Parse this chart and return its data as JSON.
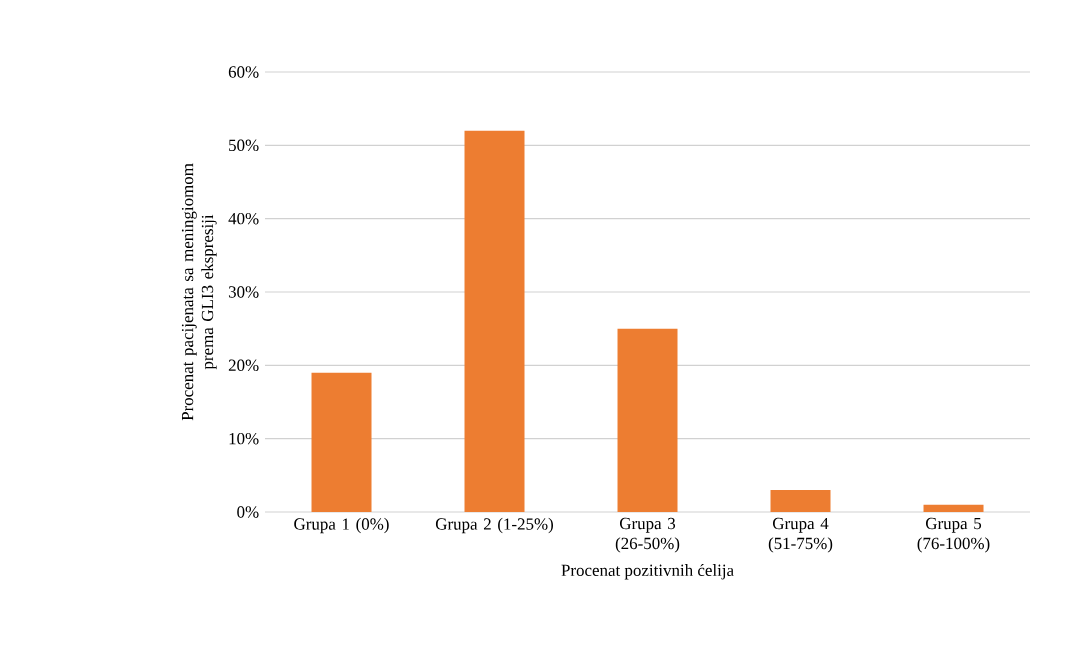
{
  "chart_data": {
    "type": "bar",
    "xlabel": "Procenat pozitivnih ćelija",
    "ylabel": "Procenat pacijenata sa meningiomom prema GLI3 ekspresiji",
    "categories": [
      "Grupa 1 (0%)",
      "Grupa 2 (1-25%)",
      "Grupa 3 (26-50%)",
      "Grupa 4 (51-75%)",
      "Grupa 5 (76-100%)"
    ],
    "values": [
      19,
      52,
      25,
      3,
      1
    ],
    "color": "#ed7d31",
    "ylim": [
      0,
      60
    ],
    "yticks": [
      {
        "value": 0,
        "label": "0%"
      },
      {
        "value": 10,
        "label": "10%"
      },
      {
        "value": 20,
        "label": "20%"
      },
      {
        "value": 30,
        "label": "30%"
      },
      {
        "value": 40,
        "label": "40%"
      },
      {
        "value": 50,
        "label": "50%"
      },
      {
        "value": 60,
        "label": "60%"
      }
    ],
    "grid": "y"
  }
}
